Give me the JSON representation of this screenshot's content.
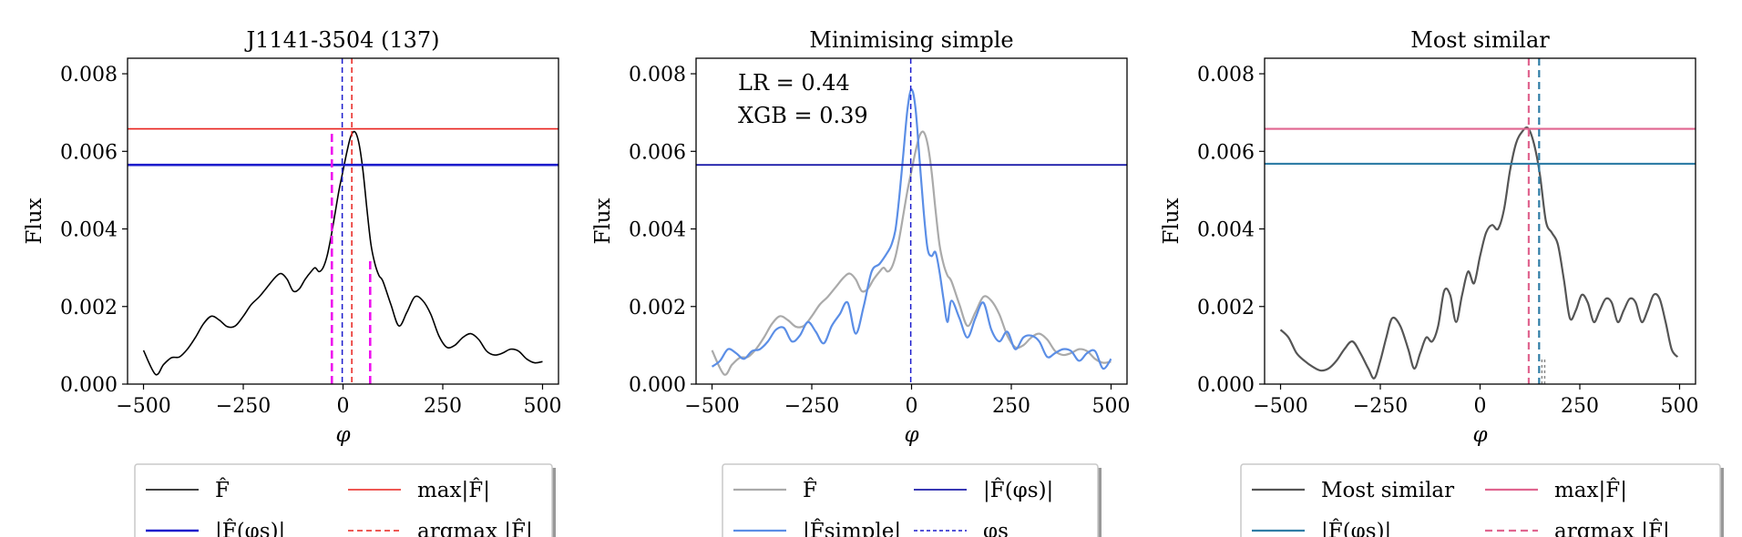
{
  "chart_data": [
    {
      "type": "line",
      "title": "J1141-3504 (137)",
      "xlabel": "φ",
      "ylabel": "Flux",
      "xlim": [
        -540,
        540
      ],
      "ylim": [
        0,
        0.0084
      ],
      "xticks": [
        -500,
        -250,
        0,
        250,
        500
      ],
      "xtick_labels": [
        "−500",
        "−250",
        "0",
        "250",
        "500"
      ],
      "yticks": [
        0,
        0.002,
        0.004,
        0.006,
        0.008
      ],
      "ytick_labels": [
        "0.000",
        "0.002",
        "0.004",
        "0.006",
        "0.008"
      ],
      "annotations": [],
      "series": [
        {
          "name": "F̂",
          "color": "#000000",
          "width": 1.6,
          "x": [
            -500,
            -470,
            -450,
            -430,
            -410,
            -390,
            -370,
            -350,
            -330,
            -310,
            -290,
            -270,
            -250,
            -230,
            -210,
            -190,
            -170,
            -155,
            -140,
            -125,
            -110,
            -95,
            -80,
            -70,
            -60,
            -50,
            -40,
            -30,
            -20,
            -10,
            0,
            10,
            20,
            30,
            40,
            50,
            60,
            70,
            80,
            90,
            100,
            120,
            140,
            160,
            180,
            200,
            220,
            240,
            260,
            280,
            300,
            320,
            340,
            360,
            380,
            400,
            420,
            440,
            460,
            480,
            500
          ],
          "y": [
            0.00087,
            0.00025,
            0.0005,
            0.00068,
            0.0007,
            0.0009,
            0.0012,
            0.00155,
            0.00175,
            0.00165,
            0.00148,
            0.0015,
            0.00175,
            0.00205,
            0.00225,
            0.0025,
            0.00275,
            0.00285,
            0.0027,
            0.0024,
            0.00245,
            0.0027,
            0.0029,
            0.003,
            0.0029,
            0.003,
            0.0033,
            0.0038,
            0.0044,
            0.005,
            0.0055,
            0.006,
            0.0064,
            0.0065,
            0.0062,
            0.0055,
            0.0045,
            0.0036,
            0.0031,
            0.0028,
            0.00265,
            0.00205,
            0.0015,
            0.00185,
            0.00225,
            0.00215,
            0.0018,
            0.00125,
            0.00095,
            0.001,
            0.0012,
            0.0013,
            0.00115,
            0.00085,
            0.00075,
            0.0008,
            0.0009,
            0.00085,
            0.00065,
            0.00055,
            0.00058
          ]
        },
        {
          "name": "max|F̂|",
          "kind": "hline",
          "y": 0.00658,
          "color": "#e8201c",
          "width": 1.6
        },
        {
          "name": "|F̂(φs)|",
          "kind": "hline",
          "y": 0.00565,
          "color": "#1c1ccc",
          "width": 2.6
        },
        {
          "name": "argmax |F̂|",
          "kind": "vline",
          "x": 22,
          "color": "#e8201c",
          "dash": "6,4",
          "width": 1.5
        },
        {
          "name": "φs",
          "kind": "vline",
          "x": -2,
          "color": "#1c1ccc",
          "dash": "6,4",
          "width": 1.5
        },
        {
          "name": "magenta-left",
          "kind": "vsegment",
          "x": -28,
          "y0": 0,
          "y1": 0.0065,
          "color": "#ee10ee",
          "dash": "9,5",
          "width": 2.6
        },
        {
          "name": "magenta-right",
          "kind": "vsegment",
          "x": 68,
          "y0": 0,
          "y1": 0.0032,
          "color": "#ee10ee",
          "dash": "9,5",
          "width": 2.6
        }
      ]
    },
    {
      "type": "line",
      "title": "Minimising simple",
      "xlabel": "φ",
      "ylabel": "Flux",
      "xlim": [
        -540,
        540
      ],
      "ylim": [
        0,
        0.0084
      ],
      "xticks": [
        -500,
        -250,
        0,
        250,
        500
      ],
      "xtick_labels": [
        "−500",
        "−250",
        "0",
        "250",
        "500"
      ],
      "yticks": [
        0,
        0.002,
        0.004,
        0.006,
        0.008
      ],
      "ytick_labels": [
        "0.000",
        "0.002",
        "0.004",
        "0.006",
        "0.008"
      ],
      "annotations": [
        "LR = 0.44",
        "XGB = 0.39"
      ],
      "series": [
        {
          "name": "F̂",
          "color": "#aaaaaa",
          "width": 2.2,
          "x": [
            -500,
            -470,
            -450,
            -430,
            -410,
            -390,
            -370,
            -350,
            -330,
            -310,
            -290,
            -270,
            -250,
            -230,
            -210,
            -190,
            -170,
            -155,
            -140,
            -125,
            -110,
            -95,
            -80,
            -70,
            -60,
            -50,
            -40,
            -30,
            -20,
            -10,
            0,
            10,
            20,
            30,
            40,
            50,
            60,
            70,
            80,
            90,
            100,
            120,
            140,
            160,
            180,
            200,
            220,
            240,
            260,
            280,
            300,
            320,
            340,
            360,
            380,
            400,
            420,
            440,
            460,
            480,
            500
          ],
          "y": [
            0.00087,
            0.00025,
            0.0005,
            0.00068,
            0.0007,
            0.0009,
            0.0012,
            0.00155,
            0.00175,
            0.00165,
            0.00148,
            0.0015,
            0.00175,
            0.00205,
            0.00225,
            0.0025,
            0.00275,
            0.00285,
            0.0027,
            0.0024,
            0.00245,
            0.0027,
            0.0029,
            0.003,
            0.0029,
            0.003,
            0.0033,
            0.0038,
            0.0044,
            0.005,
            0.0055,
            0.006,
            0.0064,
            0.0065,
            0.0062,
            0.0055,
            0.0045,
            0.0036,
            0.0031,
            0.0028,
            0.00265,
            0.00205,
            0.0015,
            0.00185,
            0.00225,
            0.00215,
            0.0018,
            0.00125,
            0.00095,
            0.001,
            0.0012,
            0.0013,
            0.00115,
            0.00085,
            0.00075,
            0.0008,
            0.0009,
            0.00085,
            0.00065,
            0.00055,
            0.00058
          ]
        },
        {
          "name": "|F̂simple|",
          "color": "#5b8ee6",
          "width": 2.2,
          "x": [
            -500,
            -480,
            -460,
            -440,
            -420,
            -400,
            -380,
            -360,
            -340,
            -320,
            -300,
            -280,
            -260,
            -240,
            -220,
            -200,
            -180,
            -160,
            -140,
            -120,
            -100,
            -80,
            -60,
            -50,
            -40,
            -30,
            -20,
            -10,
            0,
            10,
            20,
            30,
            40,
            50,
            60,
            70,
            80,
            90,
            100,
            120,
            140,
            160,
            180,
            200,
            220,
            240,
            260,
            280,
            300,
            320,
            340,
            360,
            380,
            400,
            420,
            440,
            460,
            480,
            500
          ],
          "y": [
            0.00045,
            0.0006,
            0.0009,
            0.0008,
            0.00065,
            0.00085,
            0.0009,
            0.0011,
            0.0014,
            0.00145,
            0.0011,
            0.00125,
            0.0016,
            0.00135,
            0.00105,
            0.0015,
            0.0018,
            0.0021,
            0.0013,
            0.002,
            0.0029,
            0.0031,
            0.0034,
            0.0036,
            0.004,
            0.0049,
            0.006,
            0.0071,
            0.0076,
            0.0071,
            0.0058,
            0.0045,
            0.0035,
            0.0033,
            0.0034,
            0.0029,
            0.0022,
            0.0016,
            0.00215,
            0.0017,
            0.0012,
            0.0017,
            0.0021,
            0.0014,
            0.0011,
            0.00135,
            0.0009,
            0.0012,
            0.00125,
            0.0011,
            0.0007,
            0.0008,
            0.0009,
            0.00085,
            0.0006,
            0.0008,
            0.00085,
            0.0004,
            0.00065
          ]
        },
        {
          "name": "|F̂(φs)|",
          "kind": "hline",
          "y": 0.00565,
          "color": "#1c1caa",
          "width": 1.8
        },
        {
          "name": "φs",
          "kind": "vline",
          "x": -2,
          "color": "#1c1ccc",
          "dash": "6,4",
          "width": 1.5
        }
      ]
    },
    {
      "type": "line",
      "title": "Most similar",
      "xlabel": "φ",
      "ylabel": "Flux",
      "xlim": [
        -540,
        540
      ],
      "ylim": [
        0,
        0.0084
      ],
      "xticks": [
        -500,
        -250,
        0,
        250,
        500
      ],
      "xtick_labels": [
        "−500",
        "−250",
        "0",
        "250",
        "500"
      ],
      "yticks": [
        0,
        0.002,
        0.004,
        0.006,
        0.008
      ],
      "ytick_labels": [
        "0.000",
        "0.002",
        "0.004",
        "0.006",
        "0.008"
      ],
      "annotations": [],
      "series": [
        {
          "name": "Most similar",
          "color": "#555555",
          "width": 2.2,
          "x": [
            -500,
            -480,
            -460,
            -440,
            -420,
            -400,
            -380,
            -360,
            -340,
            -320,
            -300,
            -280,
            -265,
            -250,
            -235,
            -220,
            -200,
            -180,
            -165,
            -150,
            -135,
            -120,
            -105,
            -90,
            -75,
            -60,
            -45,
            -30,
            -15,
            0,
            15,
            30,
            45,
            60,
            75,
            90,
            105,
            120,
            135,
            150,
            165,
            180,
            195,
            210,
            225,
            240,
            255,
            270,
            285,
            300,
            315,
            330,
            345,
            360,
            375,
            390,
            405,
            420,
            435,
            450,
            465,
            480,
            495
          ],
          "y": [
            0.0014,
            0.0012,
            0.0008,
            0.0006,
            0.00045,
            0.00035,
            0.0004,
            0.0006,
            0.0009,
            0.0011,
            0.0008,
            0.0004,
            0.00015,
            0.0006,
            0.0012,
            0.0017,
            0.0015,
            0.0009,
            0.0004,
            0.0008,
            0.0012,
            0.0011,
            0.0015,
            0.0024,
            0.0023,
            0.0016,
            0.0023,
            0.0029,
            0.0026,
            0.0033,
            0.0039,
            0.0041,
            0.004,
            0.0045,
            0.0055,
            0.0062,
            0.0065,
            0.0066,
            0.0062,
            0.0054,
            0.0042,
            0.0039,
            0.0036,
            0.0027,
            0.0017,
            0.0019,
            0.0023,
            0.0021,
            0.0016,
            0.0019,
            0.0022,
            0.0021,
            0.0016,
            0.0019,
            0.0022,
            0.0021,
            0.0016,
            0.0019,
            0.0023,
            0.0022,
            0.0016,
            0.0009,
            0.0007
          ]
        },
        {
          "name": "max|F̂|",
          "kind": "hline",
          "y": 0.00658,
          "color": "#e0658f",
          "width": 2.2
        },
        {
          "name": "|F̂(φs)|",
          "kind": "hline",
          "y": 0.00568,
          "color": "#2f7da6",
          "width": 2.2
        },
        {
          "name": "argmax |F̂|",
          "kind": "vline",
          "x": 122,
          "color": "#e0658f",
          "dash": "8,5",
          "width": 2.2
        },
        {
          "name": "φs",
          "kind": "vline",
          "x": 148,
          "color": "#2f7da6",
          "dash": "8,5",
          "width": 2.2
        },
        {
          "name": "grey-tick-1",
          "kind": "vsegment",
          "x": 155,
          "y0": 0,
          "y1": 0.0007,
          "color": "#888888",
          "dash": "3,3",
          "width": 1.5
        },
        {
          "name": "grey-tick-2",
          "kind": "vsegment",
          "x": 162,
          "y0": 0,
          "y1": 0.0007,
          "color": "#888888",
          "dash": "3,3",
          "width": 1.5
        }
      ]
    }
  ],
  "legends": [
    {
      "entries": [
        {
          "label": "F̂",
          "color": "#000000",
          "dash": "",
          "width": 1.6
        },
        {
          "label": "max|F̂|",
          "color": "#e8201c",
          "dash": "",
          "width": 1.6
        },
        {
          "label": "|F̂(φs)|",
          "color": "#1c1ccc",
          "dash": "",
          "width": 2.6
        },
        {
          "label": "argmax |F̂|",
          "color": "#e8201c",
          "dash": "6,4",
          "width": 1.5
        }
      ]
    },
    {
      "entries": [
        {
          "label": "F̂",
          "color": "#aaaaaa",
          "dash": "",
          "width": 2.2
        },
        {
          "label": "|F̂(φs)|",
          "color": "#1c1caa",
          "dash": "",
          "width": 1.8
        },
        {
          "label": "|F̂simple|",
          "color": "#5b8ee6",
          "dash": "",
          "width": 2.2
        },
        {
          "label": "φs",
          "color": "#1c1ccc",
          "dash": "4,3",
          "width": 1.5
        }
      ]
    },
    {
      "entries": [
        {
          "label": "Most similar",
          "color": "#555555",
          "dash": "",
          "width": 2.2
        },
        {
          "label": "max|F̂|",
          "color": "#e0658f",
          "dash": "",
          "width": 2.2
        },
        {
          "label": "|F̂(φs)|",
          "color": "#2f7da6",
          "dash": "",
          "width": 2.2
        },
        {
          "label": "argmax |F̂|",
          "color": "#e0658f",
          "dash": "8,5",
          "width": 2.2
        }
      ]
    }
  ]
}
